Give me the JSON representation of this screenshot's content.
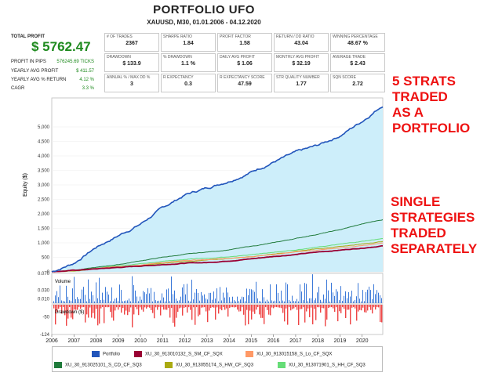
{
  "header": {
    "title": "PORTFOLIO UFO",
    "subtitle": "XAUUSD, M30, 01.01.2006 - 04.12.2020"
  },
  "total_profit": {
    "label": "TOTAL PROFIT",
    "value": "$ 5762.47"
  },
  "summary": [
    {
      "label": "PROFIT IN PIPS",
      "value": "576245.69 TICKS"
    },
    {
      "label": "YEARLY AVG PROFIT",
      "value": "$ 411.57"
    },
    {
      "label": "YEARLY AVG % RETURN",
      "value": "4.12 %"
    },
    {
      "label": "CAGR",
      "value": "3.3 %"
    }
  ],
  "stats_rows": [
    [
      {
        "label": "# OF TRADES",
        "value": "2367"
      },
      {
        "label": "SHARPE RATIO",
        "value": "1.84"
      },
      {
        "label": "PROFIT FACTOR",
        "value": "1.58"
      },
      {
        "label": "RETURN / DD RATIO",
        "value": "43.04"
      },
      {
        "label": "WINNING PERCENTAGE",
        "value": "48.67 %"
      }
    ],
    [
      {
        "label": "DRAWDOWN",
        "value": "$ 133.9"
      },
      {
        "label": "% DRAWDOWN",
        "value": "1.1 %"
      },
      {
        "label": "DAILY AVG PROFIT",
        "value": "$ 1.06"
      },
      {
        "label": "MONTHLY AVG PROFIT",
        "value": "$ 32.19"
      },
      {
        "label": "AVERAGE TRADE",
        "value": "$ 2.43"
      }
    ],
    [
      {
        "label": "ANNUAL % / MAX DD %",
        "value": "3"
      },
      {
        "label": "R EXPECTANCY",
        "value": "0.3"
      },
      {
        "label": "R EXPECTANCY SCORE",
        "value": "47.59"
      },
      {
        "label": "STR QUALITY NUMBER",
        "value": "1.77"
      },
      {
        "label": "SQN SCORE",
        "value": "2.72"
      }
    ]
  ],
  "annotations": {
    "portfolio": [
      "5 STRATS",
      "TRADED",
      "AS A",
      "PORTFOLIO"
    ],
    "single": [
      "SINGLE",
      "STRATEGIES",
      "TRADED",
      "SEPARATELY"
    ]
  },
  "colors": {
    "annotation": "#ee1111",
    "portfolio_line": "#2255bb",
    "portfolio_fill": "#cdeefa",
    "volume_bar": "#3a78d8",
    "drawdown_bar": "#ee4444"
  },
  "chart_data": [
    {
      "type": "line",
      "ylabel": "Equity ($)",
      "ylim": [
        0,
        6000
      ],
      "yticks": [
        "5,000",
        "4,500",
        "4,000",
        "3,500",
        "3,000",
        "2,500",
        "2,000",
        "1,500",
        "1,000",
        "500",
        "0"
      ],
      "watermark_years": [
        "2007",
        "2008",
        "2009",
        "2010",
        "2011",
        "2012",
        "2013",
        "2014",
        "2015",
        "2016",
        "2017",
        "2018",
        "2019",
        "2020"
      ],
      "x": [
        2006,
        2007,
        2008,
        2009,
        2010,
        2011,
        2012,
        2013,
        2014,
        2015,
        2016,
        2017,
        2018,
        2019,
        2020,
        2020.93
      ],
      "series": [
        {
          "name": "Portfolio",
          "color": "#2255bb",
          "values": [
            0,
            300,
            850,
            1250,
            1650,
            2200,
            2650,
            2900,
            3150,
            3450,
            3800,
            4100,
            4350,
            4700,
            5200,
            5760
          ]
        },
        {
          "name": "XU_30_913010132_S_SM_CF_SQX",
          "color": "#990033",
          "values": [
            0,
            50,
            100,
            150,
            200,
            250,
            300,
            320,
            380,
            450,
            530,
            600,
            680,
            750,
            820,
            900
          ]
        },
        {
          "name": "XU_30_913015158_S_Lo_CF_SQX",
          "color": "#ff9966",
          "values": [
            0,
            40,
            110,
            180,
            250,
            320,
            380,
            420,
            470,
            530,
            600,
            680,
            750,
            820,
            900,
            1000
          ]
        },
        {
          "name": "XU_30_913025101_S_CD_CF_SQ3",
          "color": "#1f7a3a",
          "values": [
            0,
            60,
            150,
            250,
            380,
            500,
            600,
            680,
            760,
            880,
            1000,
            1150,
            1300,
            1450,
            1650,
            1800
          ]
        },
        {
          "name": "XU_30_913055174_S_HW_CF_SQ3",
          "color": "#aaaa11",
          "values": [
            0,
            40,
            100,
            160,
            220,
            290,
            350,
            400,
            460,
            530,
            620,
            700,
            800,
            880,
            960,
            1050
          ]
        },
        {
          "name": "XU_30_913071901_S_HH_CF_SQ3",
          "color": "#66dd77",
          "values": [
            0,
            50,
            130,
            210,
            280,
            360,
            430,
            470,
            520,
            590,
            680,
            760,
            850,
            950,
            1050,
            1150
          ]
        }
      ]
    },
    {
      "type": "bar",
      "title": "Volume",
      "ylim": [
        0,
        0.07
      ],
      "yticks": [
        "0.070",
        "0.030",
        "0.010"
      ]
    },
    {
      "type": "bar",
      "title": "Drawdown ($)",
      "ylim": [
        -124,
        0
      ],
      "yticks": [
        "-50",
        "-124"
      ],
      "xticks": [
        "2006",
        "2007",
        "2008",
        "2009",
        "2010",
        "2011",
        "2012",
        "2013",
        "2014",
        "2015",
        "2016",
        "2017",
        "2018",
        "2019",
        "2020"
      ]
    }
  ]
}
